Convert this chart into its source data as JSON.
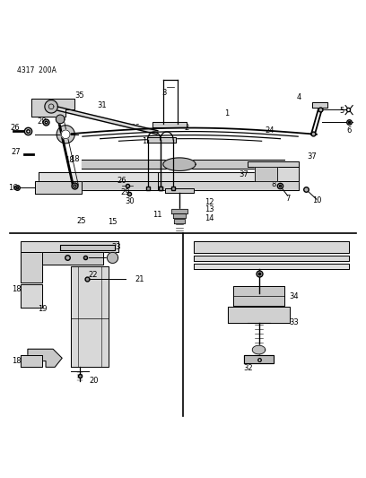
{
  "header_text": "4317  200A",
  "bg_color": "#ffffff",
  "line_color": "#000000",
  "text_color": "#000000",
  "fig_width": 4.08,
  "fig_height": 5.33,
  "dpi": 100
}
